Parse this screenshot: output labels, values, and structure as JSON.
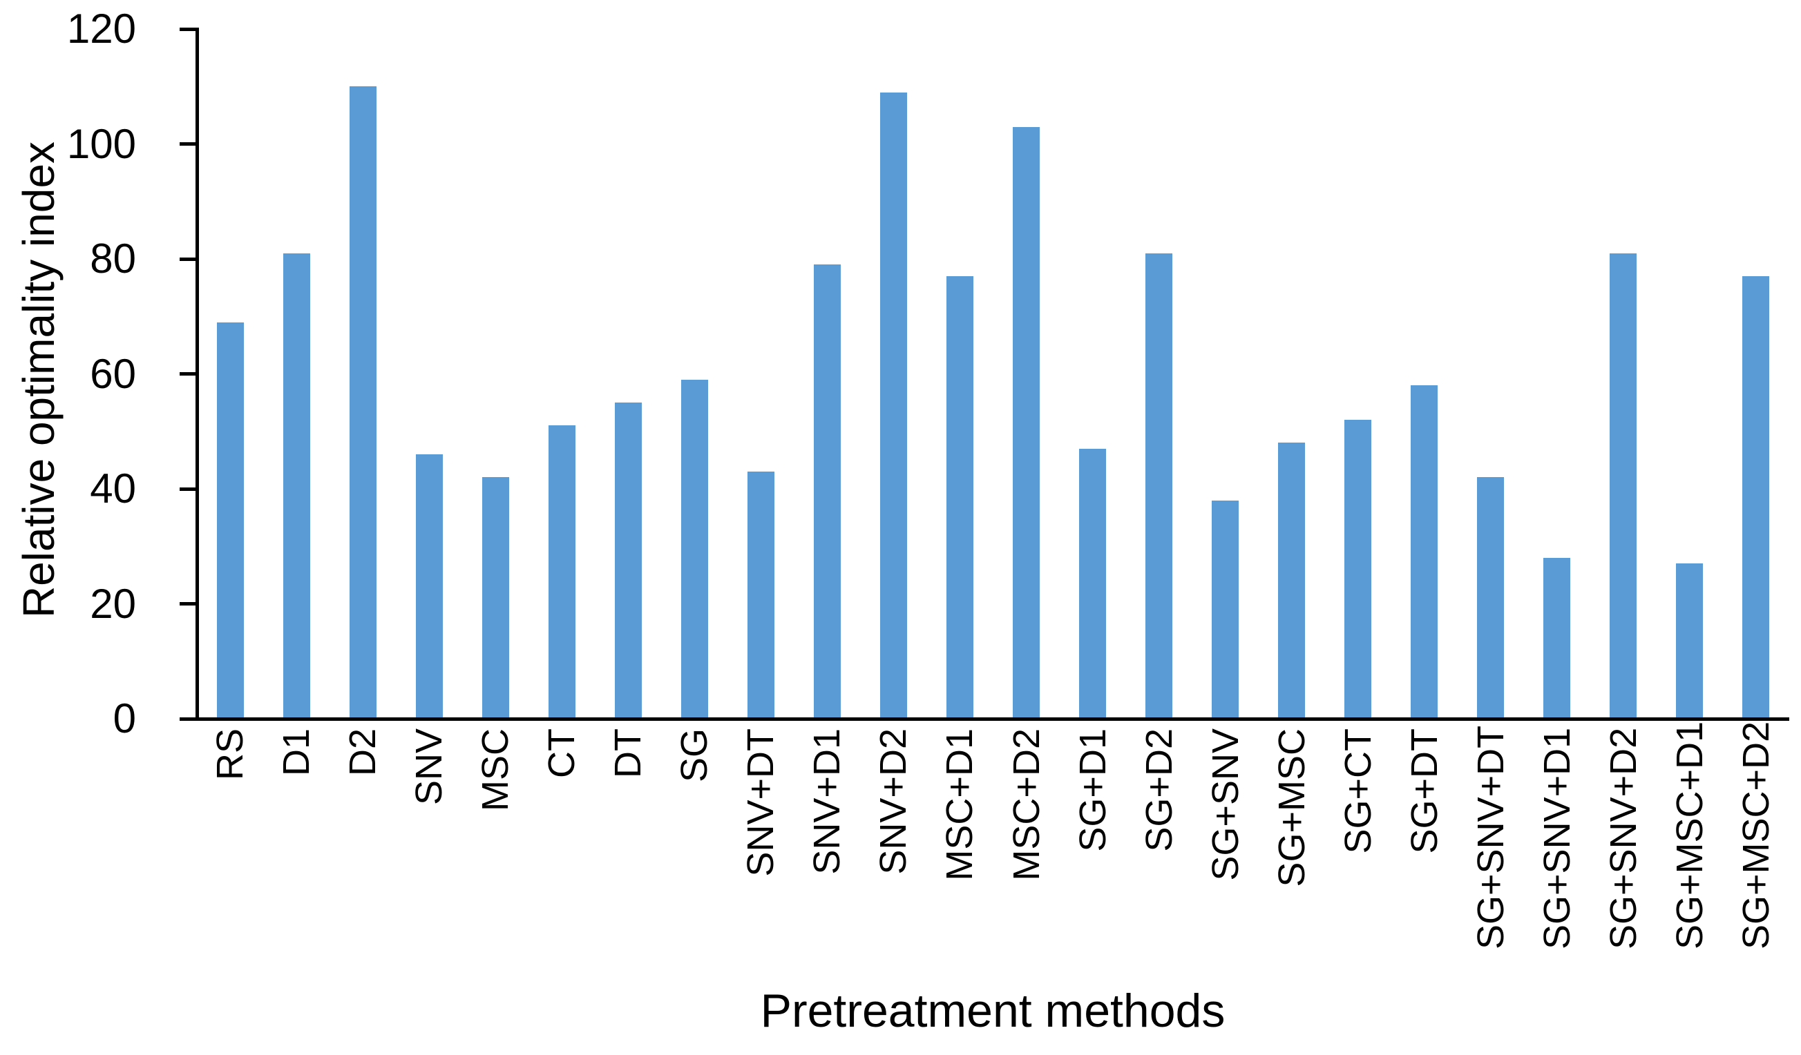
{
  "page": {
    "background_color": "#ffffff",
    "text_color": "#000000"
  },
  "chart_data": {
    "type": "bar",
    "title": "",
    "xlabel": "Pretreatment methods",
    "ylabel": "Relative optimality index",
    "categories": [
      "RS",
      "D1",
      "D2",
      "SNV",
      "MSC",
      "CT",
      "DT",
      "SG",
      "SNV+DT",
      "SNV+D1",
      "SNV+D2",
      "MSC+D1",
      "MSC+D2",
      "SG+D1",
      "SG+D2",
      "SG+SNV",
      "SG+MSC",
      "SG+CT",
      "SG+DT",
      "SG+SNV+DT",
      "SG+SNV+D1",
      "SG+SNV+D2",
      "SG+MSC+D1",
      "SG+MSC+D2"
    ],
    "values": [
      69,
      81,
      110,
      46,
      42,
      51,
      55,
      59,
      43,
      79,
      109,
      77,
      103,
      47,
      81,
      38,
      48,
      52,
      58,
      42,
      28,
      81,
      27,
      77
    ],
    "ylim": [
      0,
      120
    ],
    "yticks": [
      0,
      20,
      40,
      60,
      80,
      100,
      120
    ],
    "bar_color": "#5b9bd5",
    "axis_color": "#000000",
    "grid": "off",
    "legend": "none",
    "x_labels_rotation_degrees": 90,
    "series_count": 1
  }
}
